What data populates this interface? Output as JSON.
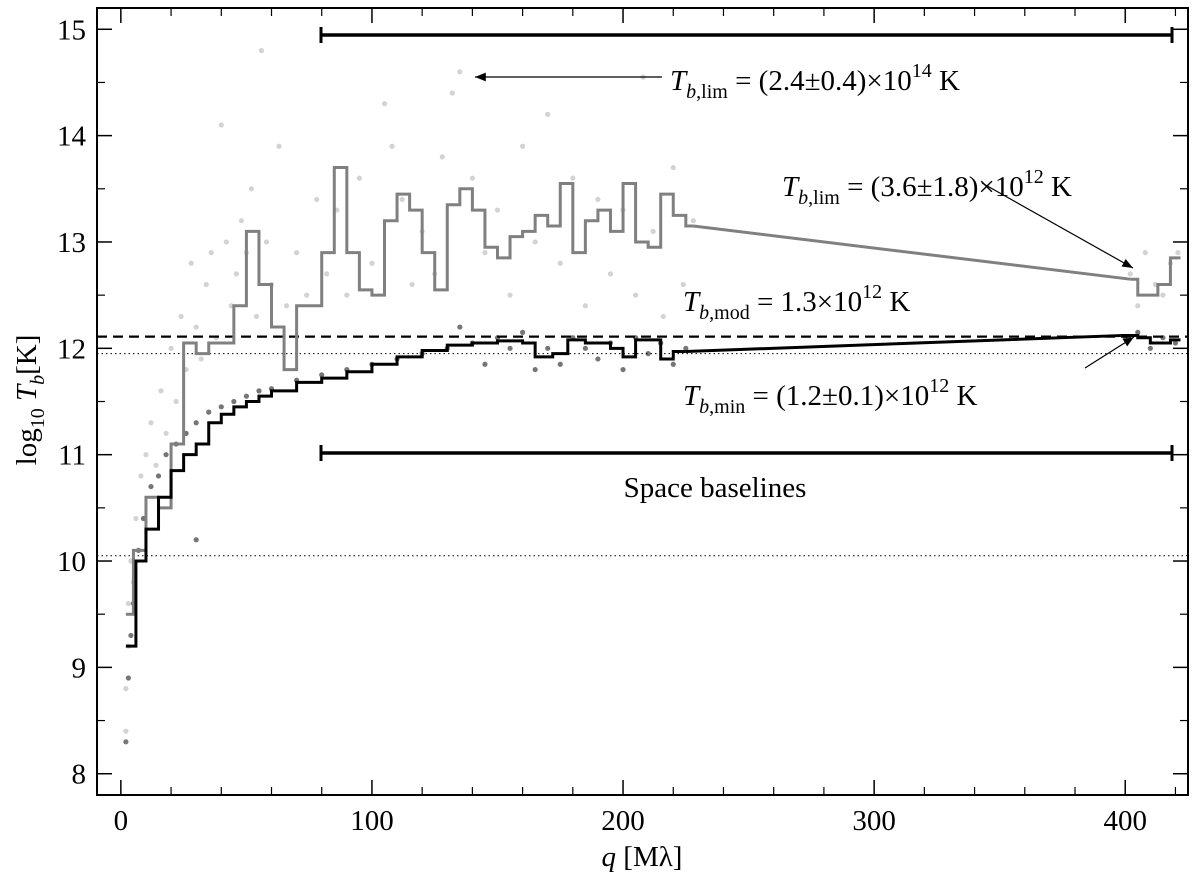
{
  "chart_data": {
    "type": "scatter-steps",
    "xlim": [
      -9.5,
      425
    ],
    "ylim": [
      7.8,
      15.2
    ],
    "xticks": [
      0,
      100,
      200,
      300,
      400
    ],
    "yticks": [
      8,
      9,
      10,
      11,
      12,
      13,
      14,
      15
    ],
    "xminor_ticks": [
      20,
      40,
      60,
      80,
      120,
      140,
      160,
      180,
      220,
      240,
      260,
      280,
      320,
      340,
      360,
      380,
      420
    ],
    "yminor_ticks": [
      8.5,
      9.5,
      10.5,
      11.5,
      12.5,
      13.5,
      14.5
    ],
    "xlabel": {
      "spans": [
        {
          "text": "q",
          "style": "italic"
        },
        {
          "text": " [Mλ]",
          "style": "normal"
        }
      ]
    },
    "ylabel": {
      "spans": [
        {
          "text": "log",
          "style": "normal"
        },
        {
          "text": "10",
          "style": "sub"
        },
        {
          "text": " T",
          "style": "italic"
        },
        {
          "text": "b",
          "style": "sub-italic"
        },
        {
          "text": "[K]",
          "style": "normal"
        }
      ]
    },
    "scatter": [
      {
        "color": "#d3d3d3",
        "x": [
          2,
          2,
          3,
          3,
          4,
          5,
          6,
          8,
          10,
          12,
          14,
          16,
          18,
          20,
          22,
          24,
          26,
          28,
          30,
          32,
          34,
          36,
          38,
          40,
          42,
          44,
          46,
          48,
          50,
          52,
          54,
          56,
          58,
          60,
          63,
          66,
          70,
          74,
          78,
          82,
          86,
          90,
          95,
          100,
          105,
          108,
          112,
          116,
          120,
          125,
          128,
          132,
          135,
          140,
          145,
          150,
          155,
          160,
          165,
          170,
          175,
          180,
          185,
          190,
          195,
          200,
          205,
          208,
          212,
          216,
          220,
          224,
          228,
          402,
          405,
          408,
          412,
          415,
          418,
          421
        ],
        "values": [
          8.4,
          8.8,
          9.2,
          9.6,
          10.0,
          9.8,
          10.4,
          10.8,
          11.0,
          11.3,
          10.9,
          11.6,
          11.2,
          12.0,
          11.5,
          12.3,
          11.8,
          12.8,
          12.2,
          11.9,
          12.6,
          12.9,
          12.1,
          14.1,
          13.0,
          12.4,
          12.7,
          13.2,
          12.9,
          13.5,
          12.3,
          14.8,
          13.0,
          12.6,
          13.9,
          12.4,
          12.9,
          12.5,
          13.4,
          12.7,
          13.3,
          12.5,
          13.6,
          12.8,
          14.3,
          13.9,
          13.4,
          12.6,
          13.1,
          12.7,
          13.8,
          14.4,
          14.6,
          13.6,
          12.9,
          13.3,
          12.5,
          13.9,
          13.0,
          14.2,
          12.8,
          13.6,
          12.4,
          13.4,
          12.7,
          13.3,
          12.5,
          14.55,
          13.1,
          12.3,
          13.7,
          12.6,
          13.2,
          12.7,
          12.4,
          12.9,
          12.6,
          12.5,
          12.8,
          12.9
        ]
      },
      {
        "color": "#767676",
        "x": [
          2,
          3,
          4,
          5,
          7,
          9,
          12,
          15,
          18,
          22,
          26,
          30,
          30,
          35,
          40,
          45,
          50,
          55,
          60,
          70,
          80,
          90,
          100,
          110,
          120,
          130,
          135,
          140,
          145,
          150,
          155,
          160,
          165,
          170,
          175,
          180,
          185,
          190,
          195,
          200,
          205,
          210,
          215,
          220,
          225,
          400,
          405,
          410,
          415,
          420
        ],
        "values": [
          8.3,
          8.9,
          9.3,
          9.6,
          10.1,
          10.4,
          10.7,
          10.8,
          11.0,
          11.1,
          11.2,
          11.3,
          10.2,
          11.4,
          11.45,
          11.5,
          11.55,
          11.6,
          11.62,
          11.7,
          11.75,
          11.8,
          11.85,
          11.9,
          11.95,
          12.0,
          12.2,
          12.05,
          11.85,
          12.1,
          12.0,
          12.15,
          11.8,
          12.0,
          11.85,
          12.1,
          12.0,
          11.9,
          12.05,
          11.8,
          12.1,
          11.95,
          12.05,
          11.85,
          12.0,
          12.1,
          12.15,
          12.0,
          12.1,
          12.05
        ]
      }
    ],
    "lines": [
      {
        "kind": "step",
        "color": "#808080",
        "x": [
          2,
          5,
          10,
          15,
          20,
          25,
          30,
          35,
          40,
          45,
          50,
          55,
          60,
          65,
          70,
          75,
          80,
          85,
          90,
          95,
          100,
          105,
          110,
          115,
          120,
          125,
          130,
          135,
          140,
          145,
          150,
          155,
          160,
          165,
          170,
          175,
          180,
          185,
          190,
          195,
          200,
          205,
          210,
          215,
          220,
          225,
          228
        ],
        "values": [
          9.5,
          10.1,
          10.6,
          10.5,
          11.1,
          12.05,
          11.95,
          12.05,
          12.05,
          12.4,
          13.1,
          12.6,
          12.2,
          11.8,
          12.4,
          12.4,
          12.9,
          13.7,
          12.9,
          12.55,
          12.5,
          13.2,
          13.45,
          13.3,
          12.9,
          12.55,
          13.35,
          13.5,
          13.3,
          12.95,
          12.85,
          13.05,
          13.1,
          13.25,
          13.15,
          13.55,
          12.9,
          13.2,
          13.3,
          13.1,
          13.55,
          13.0,
          12.95,
          13.45,
          13.25,
          13.15,
          13.15
        ]
      },
      {
        "kind": "line",
        "color": "#808080",
        "x": [
          228,
          402
        ],
        "values": [
          13.15,
          12.65
        ]
      },
      {
        "kind": "step",
        "color": "#808080",
        "x": [
          402,
          405,
          410,
          413,
          418,
          422
        ],
        "values": [
          12.65,
          12.5,
          12.5,
          12.6,
          12.85,
          12.85
        ]
      },
      {
        "kind": "step",
        "color": "#000000",
        "x": [
          2,
          6,
          10,
          15,
          20,
          25,
          30,
          35,
          40,
          45,
          50,
          55,
          60,
          70,
          80,
          90,
          100,
          110,
          120,
          130,
          140,
          150,
          160,
          165,
          172,
          178,
          185,
          195,
          200,
          205,
          215,
          220,
          225
        ],
        "values": [
          9.2,
          10.0,
          10.3,
          10.6,
          10.85,
          11.0,
          11.1,
          11.3,
          11.38,
          11.45,
          11.5,
          11.55,
          11.6,
          11.68,
          11.72,
          11.78,
          11.85,
          11.92,
          11.98,
          12.03,
          12.05,
          12.07,
          12.05,
          11.92,
          11.95,
          12.08,
          12.05,
          12.0,
          11.92,
          12.08,
          11.9,
          11.97,
          11.97
        ]
      },
      {
        "kind": "line",
        "color": "#000000",
        "x": [
          225,
          398
        ],
        "values": [
          11.97,
          12.12
        ]
      },
      {
        "kind": "step",
        "color": "#000000",
        "x": [
          398,
          405,
          410,
          418,
          422
        ],
        "values": [
          12.12,
          12.1,
          12.05,
          12.08,
          12.08
        ]
      }
    ],
    "reference_lines": [
      {
        "value": 12.11,
        "style": "dashed"
      },
      {
        "value": 11.95,
        "style": "dotted"
      },
      {
        "value": 10.05,
        "style": "dotted"
      }
    ],
    "annotations": [
      {
        "spans": [
          {
            "text": "T",
            "style": "italic"
          },
          {
            "text": "b",
            "style": "sub-italic"
          },
          {
            "text": ",lim",
            "style": "sub"
          },
          {
            "text": " = (2.4±0.4)×10",
            "style": "normal"
          },
          {
            "text": "14",
            "style": "sup"
          },
          {
            "text": " K",
            "style": "normal"
          }
        ]
      },
      {
        "spans": [
          {
            "text": "T",
            "style": "italic"
          },
          {
            "text": "b",
            "style": "sub-italic"
          },
          {
            "text": ",lim",
            "style": "sub"
          },
          {
            "text": " = (3.6±1.8)×10",
            "style": "normal"
          },
          {
            "text": "12",
            "style": "sup"
          },
          {
            "text": " K",
            "style": "normal"
          }
        ]
      },
      {
        "spans": [
          {
            "text": "T",
            "style": "italic"
          },
          {
            "text": "b",
            "style": "sub-italic"
          },
          {
            "text": ",mod",
            "style": "sub"
          },
          {
            "text": " = 1.3×10",
            "style": "normal"
          },
          {
            "text": "12",
            "style": "sup"
          },
          {
            "text": " K",
            "style": "normal"
          }
        ]
      },
      {
        "spans": [
          {
            "text": "T",
            "style": "italic"
          },
          {
            "text": "b",
            "style": "sub-italic"
          },
          {
            "text": ",min",
            "style": "sub"
          },
          {
            "text": " = (1.2±0.1)×10",
            "style": "normal"
          },
          {
            "text": "12",
            "style": "sup"
          },
          {
            "text": " K",
            "style": "normal"
          }
        ]
      },
      {
        "spans": [
          {
            "text": "Space baselines",
            "style": "normal"
          }
        ]
      }
    ]
  }
}
